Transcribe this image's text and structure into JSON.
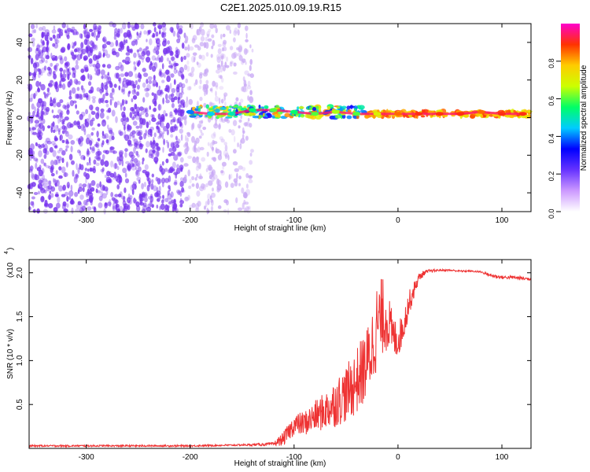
{
  "figure_title": "C2E1.2025.010.09.19.R15",
  "chart_data": [
    {
      "type": "heatmap",
      "title": "",
      "xlabel": "Height of straight line (km)",
      "ylabel": "Frequency (Hz)",
      "xlim": [
        -355,
        128
      ],
      "ylim": [
        -50,
        50
      ],
      "x_ticks": [
        -300,
        -200,
        -100,
        0,
        100
      ],
      "y_ticks": [
        -40,
        -20,
        0,
        20,
        40
      ],
      "colorbar": {
        "label": "Normalized spectral amplitude",
        "range": [
          0,
          1
        ],
        "ticks": [
          "0.0",
          "0.2",
          "0.4",
          "0.6",
          "0.8"
        ],
        "tick_values": [
          0,
          0.2,
          0.4,
          0.6,
          0.8
        ],
        "colormap": [
          "#ffffff",
          "#cc99ff",
          "#6633ff",
          "#0000ff",
          "#00ccff",
          "#00ff66",
          "#ccff00",
          "#ffcc00",
          "#ff3300",
          "#ff00cc"
        ]
      },
      "regions": [
        {
          "x_range": [
            -355,
            -205
          ],
          "freq_range": [
            -50,
            50
          ],
          "amplitude_range": [
            0.0,
            0.25
          ],
          "description_color": "#7733ee"
        },
        {
          "x_range": [
            -205,
            -140
          ],
          "freq_range": [
            -50,
            50
          ],
          "amplitude_range": [
            0.0,
            0.12
          ],
          "description_color": "#c8a8f5"
        },
        {
          "x_range": [
            -200,
            -30
          ],
          "freq_center": 3,
          "freq_width": 6,
          "amplitude_range": [
            0.3,
            0.85
          ]
        },
        {
          "x_range": [
            -30,
            128
          ],
          "freq_center": 2,
          "freq_width": 3,
          "amplitude_range": [
            0.7,
            0.9
          ]
        }
      ],
      "ridge": {
        "x": [
          -200,
          -180,
          -160,
          -140,
          -120,
          -100,
          -80,
          -60,
          -40,
          -20,
          0,
          20,
          40,
          60,
          80,
          100,
          120
        ],
        "freq": [
          3,
          2,
          2,
          4,
          4,
          3,
          2,
          3,
          2,
          2,
          2,
          2,
          2,
          2,
          3,
          2,
          2
        ],
        "amplitude": [
          0.4,
          0.45,
          0.5,
          0.55,
          0.6,
          0.55,
          0.6,
          0.65,
          0.6,
          0.7,
          0.85,
          0.9,
          0.9,
          0.9,
          0.85,
          0.9,
          0.9
        ]
      }
    },
    {
      "type": "line",
      "title": "",
      "xlabel": "Height of straight line (km)",
      "ylabel": "SNR (10 * v/v)",
      "y_scale_label": "(x10",
      "y_scale_exponent": "4",
      "xlim": [
        -355,
        128
      ],
      "ylim": [
        0,
        2.15
      ],
      "x_ticks": [
        -300,
        -200,
        -100,
        0,
        100
      ],
      "y_ticks": [
        0.5,
        1.0,
        1.5,
        2.0
      ],
      "y_tick_labels": [
        "0.5",
        "1.0",
        "1.5",
        "2.0"
      ],
      "series": [
        {
          "color": "#ee3333",
          "x": [
            -355,
            -300,
            -250,
            -200,
            -150,
            -120,
            -110,
            -100,
            -90,
            -80,
            -70,
            -60,
            -50,
            -40,
            -30,
            -25,
            -20,
            -15,
            -10,
            -5,
            0,
            5,
            10,
            15,
            20,
            25,
            30,
            40,
            50,
            60,
            70,
            80,
            90,
            100,
            110,
            120,
            128
          ],
          "y": [
            0.03,
            0.03,
            0.03,
            0.03,
            0.04,
            0.05,
            0.12,
            0.28,
            0.3,
            0.38,
            0.45,
            0.55,
            0.65,
            0.8,
            1.0,
            1.2,
            1.45,
            1.55,
            1.5,
            1.3,
            1.25,
            1.4,
            1.65,
            1.8,
            1.95,
            2.0,
            2.02,
            2.03,
            2.03,
            2.02,
            2.02,
            2.01,
            1.97,
            1.95,
            1.95,
            1.94,
            1.93
          ],
          "noise": [
            0.01,
            0.01,
            0.01,
            0.01,
            0.01,
            0.02,
            0.08,
            0.12,
            0.14,
            0.18,
            0.22,
            0.28,
            0.32,
            0.38,
            0.42,
            0.45,
            0.5,
            0.45,
            0.35,
            0.25,
            0.2,
            0.18,
            0.15,
            0.1,
            0.05,
            0.03,
            0.02,
            0.01,
            0.01,
            0.01,
            0.01,
            0.01,
            0.02,
            0.02,
            0.02,
            0.02,
            0.02
          ]
        }
      ]
    }
  ]
}
